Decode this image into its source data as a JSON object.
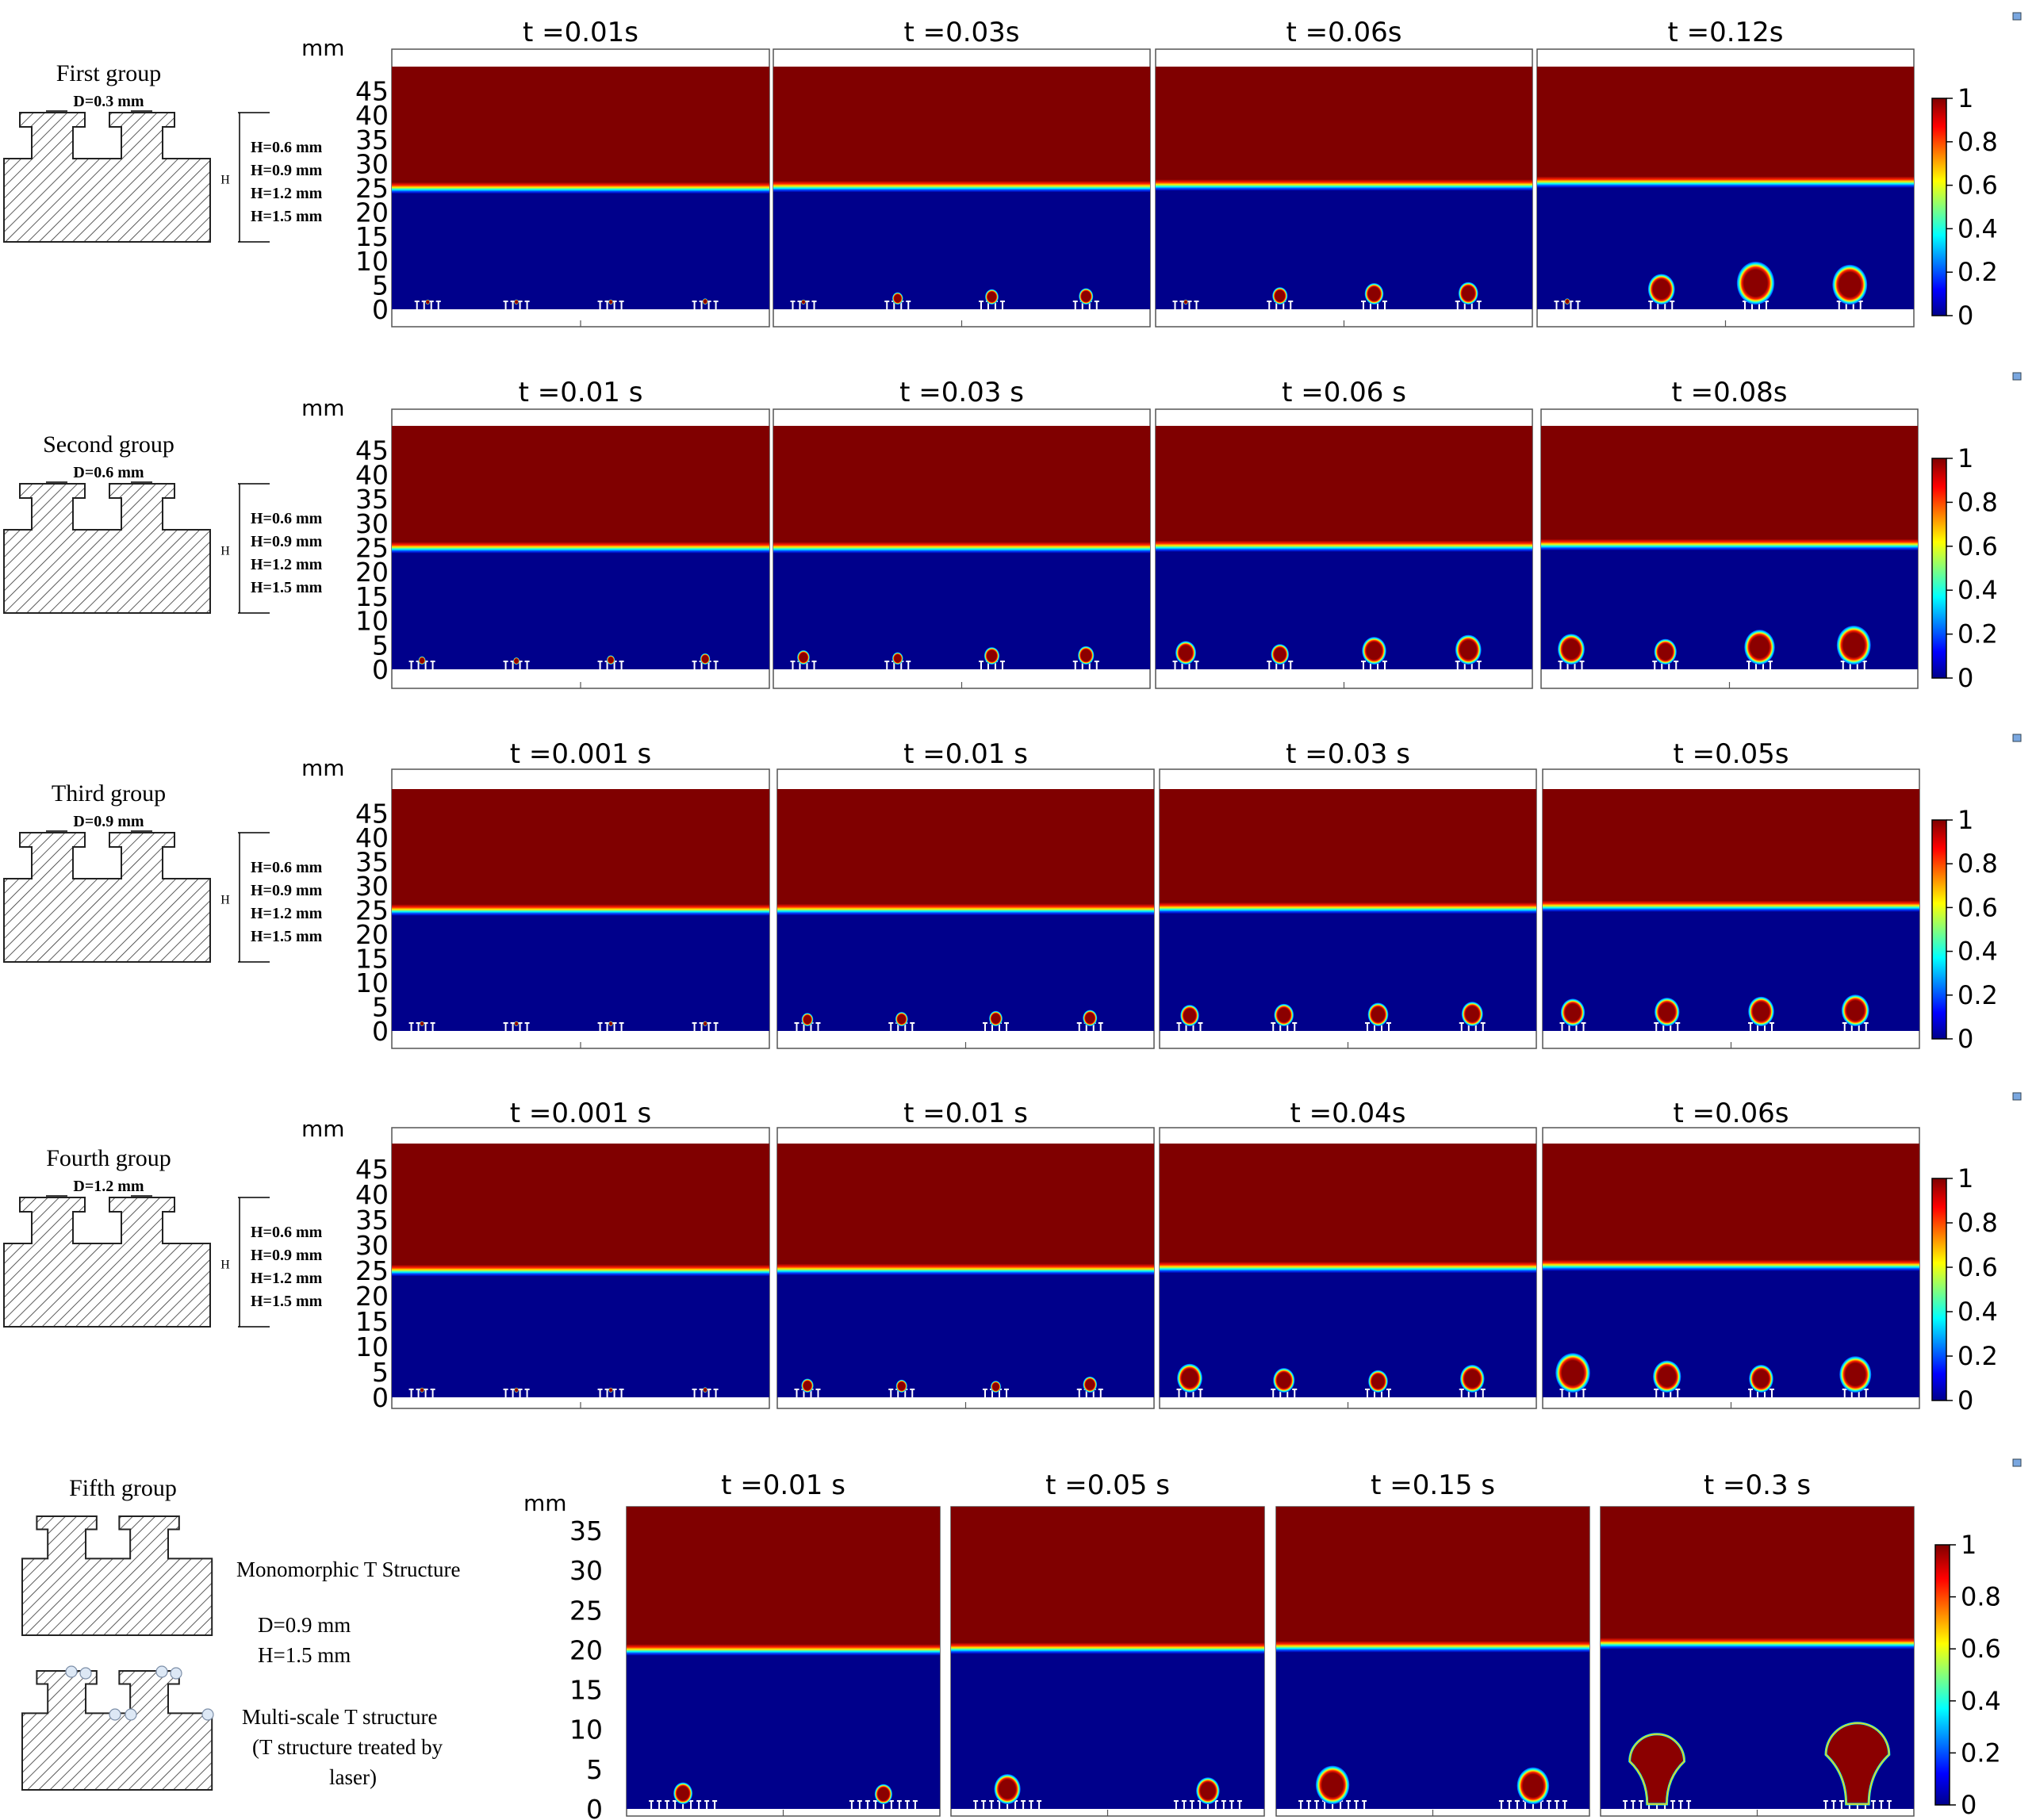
{
  "chart_data": {
    "type": "heatmap",
    "unit": "mm",
    "colorbar": {
      "ticks": [
        "0",
        "0.2",
        "0.4",
        "0.6",
        "0.8",
        "1"
      ],
      "range": [
        0,
        1
      ]
    },
    "colorscale": [
      "#00008b",
      "#0000ff",
      "#00ffff",
      "#ffff00",
      "#ff0000",
      "#800000"
    ],
    "groups": [
      {
        "schematic": {
          "title": "First group",
          "lines": [
            "D=0.3 mm",
            "H=0.6 mm",
            "H=0.9 mm",
            "H=1.2 mm",
            "H=1.5 mm"
          ],
          "dim_label": "H"
        },
        "y_ticks": [
          "0",
          "5",
          "10",
          "15",
          "20",
          "25",
          "30",
          "35",
          "40",
          "45"
        ],
        "ylim": [
          0,
          50
        ],
        "panels": [
          {
            "time": "t =0.01s",
            "interface_mm": 25.0,
            "bubbles": [
              {
                "x": 0.095,
                "d": 0.8
              },
              {
                "x": 0.33,
                "d": 1.0
              },
              {
                "x": 0.58,
                "d": 1.0
              },
              {
                "x": 0.83,
                "d": 1.2
              }
            ]
          },
          {
            "time": "t =0.03s",
            "interface_mm": 25.3,
            "bubbles": [
              {
                "x": 0.08,
                "d": 0.8
              },
              {
                "x": 0.33,
                "d": 2.4
              },
              {
                "x": 0.58,
                "d": 3.0
              },
              {
                "x": 0.83,
                "d": 3.2
              }
            ]
          },
          {
            "time": "t =0.06s",
            "interface_mm": 25.6,
            "bubbles": [
              {
                "x": 0.08,
                "d": 0.9
              },
              {
                "x": 0.33,
                "d": 3.4
              },
              {
                "x": 0.58,
                "d": 4.2
              },
              {
                "x": 0.83,
                "d": 4.4
              }
            ]
          },
          {
            "time": "t =0.12s",
            "interface_mm": 26.2,
            "bubbles": [
              {
                "x": 0.08,
                "d": 1.2
              },
              {
                "x": 0.33,
                "d": 6.0
              },
              {
                "x": 0.58,
                "d": 8.4
              },
              {
                "x": 0.83,
                "d": 7.8
              }
            ]
          }
        ]
      },
      {
        "schematic": {
          "title": "Second group",
          "lines": [
            "D=0.6 mm",
            "H=0.6 mm",
            "H=0.9 mm",
            "H=1.2 mm",
            "H=1.5 mm"
          ],
          "dim_label": "H"
        },
        "y_ticks": [
          "0",
          "5",
          "10",
          "15",
          "20",
          "25",
          "30",
          "35",
          "40",
          "45"
        ],
        "ylim": [
          0,
          50
        ],
        "panels": [
          {
            "time": "t =0.01 s",
            "interface_mm": 25.0,
            "bubbles": [
              {
                "x": 0.08,
                "d": 1.6
              },
              {
                "x": 0.33,
                "d": 1.4
              },
              {
                "x": 0.58,
                "d": 1.8
              },
              {
                "x": 0.83,
                "d": 2.2
              }
            ]
          },
          {
            "time": "t =0.03 s",
            "interface_mm": 25.0,
            "bubbles": [
              {
                "x": 0.08,
                "d": 2.8
              },
              {
                "x": 0.33,
                "d": 2.4
              },
              {
                "x": 0.58,
                "d": 3.4
              },
              {
                "x": 0.83,
                "d": 3.6
              }
            ]
          },
          {
            "time": "t =0.06 s",
            "interface_mm": 25.3,
            "bubbles": [
              {
                "x": 0.08,
                "d": 4.6
              },
              {
                "x": 0.33,
                "d": 4.0
              },
              {
                "x": 0.58,
                "d": 5.4
              },
              {
                "x": 0.83,
                "d": 5.8
              }
            ]
          },
          {
            "time": "t =0.08s",
            "interface_mm": 25.6,
            "bubbles": [
              {
                "x": 0.08,
                "d": 6.0
              },
              {
                "x": 0.33,
                "d": 5.0
              },
              {
                "x": 0.58,
                "d": 6.8
              },
              {
                "x": 0.83,
                "d": 7.6
              }
            ]
          }
        ]
      },
      {
        "schematic": {
          "title": "Third group",
          "lines": [
            "D=0.9 mm",
            "H=0.6 mm",
            "H=0.9 mm",
            "H=1.2 mm",
            "H=1.5 mm"
          ],
          "dim_label": "H"
        },
        "y_ticks": [
          "0",
          "5",
          "10",
          "15",
          "20",
          "25",
          "30",
          "35",
          "40",
          "45"
        ],
        "ylim": [
          0,
          50
        ],
        "panels": [
          {
            "time": "t =0.001 s",
            "interface_mm": 25.0,
            "bubbles": [
              {
                "x": 0.08,
                "d": 0.5
              },
              {
                "x": 0.33,
                "d": 0.6
              },
              {
                "x": 0.58,
                "d": 0.8
              },
              {
                "x": 0.83,
                "d": 1.0
              }
            ]
          },
          {
            "time": "t =0.01 s",
            "interface_mm": 25.1,
            "bubbles": [
              {
                "x": 0.08,
                "d": 2.6
              },
              {
                "x": 0.33,
                "d": 2.8
              },
              {
                "x": 0.58,
                "d": 3.0
              },
              {
                "x": 0.83,
                "d": 3.2
              }
            ]
          },
          {
            "time": "t =0.03 s",
            "interface_mm": 25.4,
            "bubbles": [
              {
                "x": 0.08,
                "d": 4.2
              },
              {
                "x": 0.33,
                "d": 4.4
              },
              {
                "x": 0.58,
                "d": 4.6
              },
              {
                "x": 0.83,
                "d": 4.8
              }
            ]
          },
          {
            "time": "t =0.05s",
            "interface_mm": 25.8,
            "bubbles": [
              {
                "x": 0.08,
                "d": 5.4
              },
              {
                "x": 0.33,
                "d": 5.6
              },
              {
                "x": 0.58,
                "d": 5.8
              },
              {
                "x": 0.83,
                "d": 6.2
              }
            ]
          }
        ]
      },
      {
        "schematic": {
          "title": "Fourth group",
          "lines": [
            "D=1.2 mm",
            "H=0.6 mm",
            "H=0.9 mm",
            "H=1.2 mm",
            "H=1.5 mm"
          ],
          "dim_label": "H"
        },
        "y_ticks": [
          "0",
          "5",
          "10",
          "15",
          "20",
          "25",
          "30",
          "35",
          "40",
          "45"
        ],
        "ylim": [
          0,
          50
        ],
        "panels": [
          {
            "time": "t =0.001 s",
            "interface_mm": 25.0,
            "bubbles": [
              {
                "x": 0.08,
                "d": 0.5
              },
              {
                "x": 0.33,
                "d": 0.6
              },
              {
                "x": 0.58,
                "d": 0.8
              },
              {
                "x": 0.83,
                "d": 1.0
              }
            ]
          },
          {
            "time": "t =0.01 s",
            "interface_mm": 25.2,
            "bubbles": [
              {
                "x": 0.08,
                "d": 2.6
              },
              {
                "x": 0.33,
                "d": 2.4
              },
              {
                "x": 0.58,
                "d": 2.2
              },
              {
                "x": 0.83,
                "d": 3.0
              }
            ]
          },
          {
            "time": "t =0.04s",
            "interface_mm": 25.6,
            "bubbles": [
              {
                "x": 0.08,
                "d": 5.4
              },
              {
                "x": 0.33,
                "d": 4.6
              },
              {
                "x": 0.58,
                "d": 4.2
              },
              {
                "x": 0.83,
                "d": 5.2
              }
            ]
          },
          {
            "time": "t =0.06s",
            "interface_mm": 26.0,
            "bubbles": [
              {
                "x": 0.08,
                "d": 7.4
              },
              {
                "x": 0.33,
                "d": 6.0
              },
              {
                "x": 0.58,
                "d": 5.2
              },
              {
                "x": 0.83,
                "d": 6.8
              }
            ]
          }
        ]
      },
      {
        "schematic": {
          "title": "Fifth group",
          "lines": [
            "Monomorphic T Structure",
            "D=0.9 mm",
            "H=1.5 mm",
            "Multi-scale T structure",
            "(T structure treated by",
            "laser)"
          ]
        },
        "y_ticks": [
          "0",
          "5",
          "10",
          "15",
          "20",
          "25",
          "30",
          "35"
        ],
        "ylim": [
          0,
          38
        ],
        "panels": [
          {
            "time": "t =0.01 s",
            "interface_mm": 20.0,
            "bubbles": [
              {
                "x": 0.18,
                "d": 2.6
              },
              {
                "x": 0.82,
                "d": 2.4
              }
            ]
          },
          {
            "time": "t =0.05 s",
            "interface_mm": 20.2,
            "bubbles": [
              {
                "x": 0.18,
                "d": 3.6
              },
              {
                "x": 0.82,
                "d": 3.2
              }
            ]
          },
          {
            "time": "t =0.15 s",
            "interface_mm": 20.4,
            "bubbles": [
              {
                "x": 0.18,
                "d": 4.6
              },
              {
                "x": 0.82,
                "d": 4.4
              }
            ]
          },
          {
            "time": "t =0.3 s",
            "interface_mm": 20.8,
            "bubbles": [
              {
                "x": 0.18,
                "d": 8.8
              },
              {
                "x": 0.82,
                "d": 10.2
              }
            ]
          }
        ]
      }
    ]
  }
}
